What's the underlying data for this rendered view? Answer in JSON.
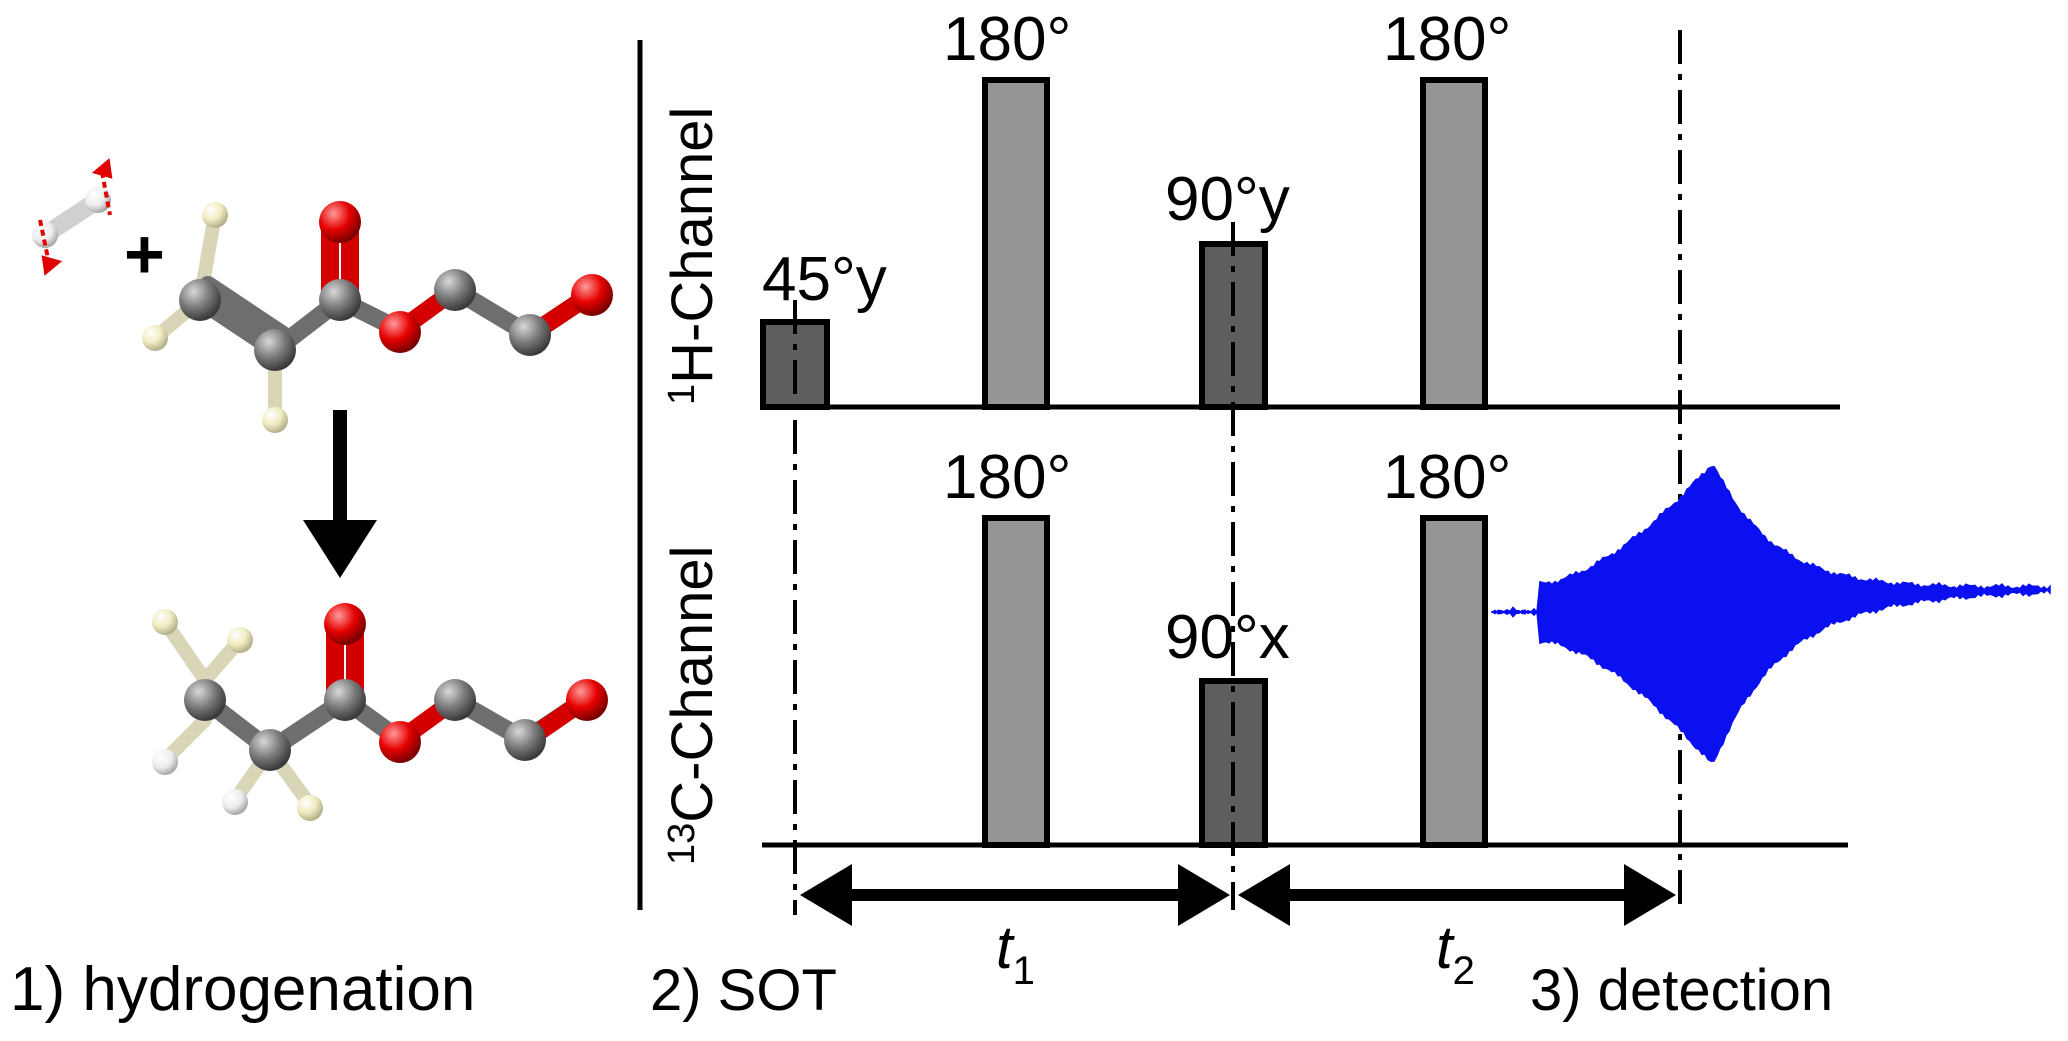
{
  "steps": {
    "hydrogenation": "1) hydrogenation",
    "sot": "2) SOT",
    "detection": "3) detection"
  },
  "channels": {
    "proton": {
      "superscript": "1",
      "label": "H-Channel"
    },
    "carbon": {
      "superscript": "13",
      "label": "C-Channel"
    }
  },
  "pulses": {
    "h_45y": "45°y",
    "h_180_a": "180°",
    "h_90y": "90°y",
    "h_180_b": "180°",
    "c_180_a": "180°",
    "c_90x": "90°x",
    "c_180_b": "180°"
  },
  "intervals": {
    "t1": {
      "symbol": "t",
      "subscript": "1"
    },
    "t2": {
      "symbol": "t",
      "subscript": "2"
    }
  },
  "reaction": {
    "plus": "+",
    "arrow": "down-arrow-icon"
  },
  "colors": {
    "signal": "#0a10f0",
    "pulse_dark": "#5e5e5e",
    "pulse_light": "#959595",
    "oxygen": "#e60000",
    "carbon": "#7a7a7a",
    "hydrogen_pale": "#f0ecc0",
    "hydrogen_white": "#f4f4f4"
  }
}
